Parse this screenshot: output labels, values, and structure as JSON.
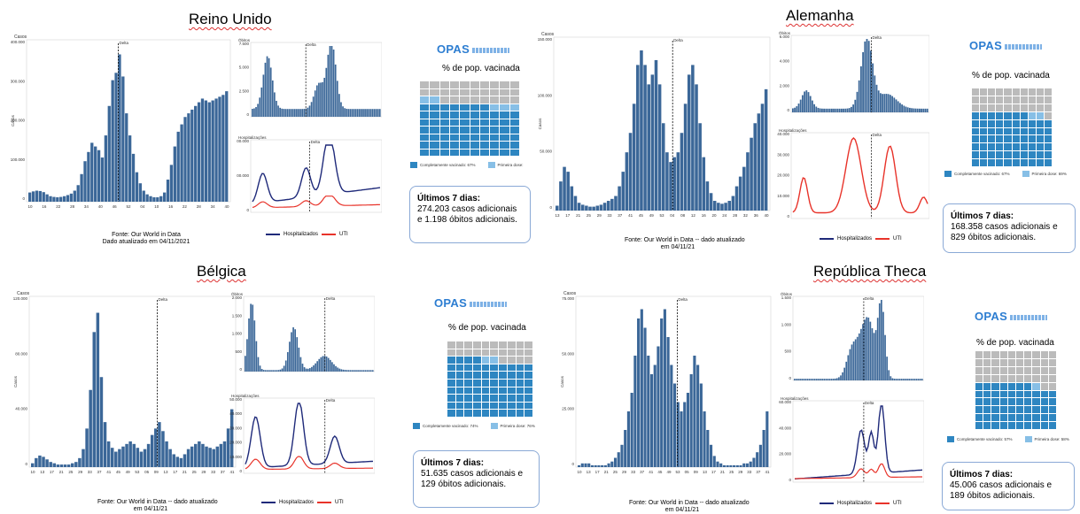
{
  "panels": [
    {
      "title": "Reino Unido",
      "cases_label": "Casos",
      "cases_ylabel": "Casos",
      "cases_yticks": [
        "400.000",
        "300.000",
        "200.000",
        "100.000",
        "0"
      ],
      "cases_xticks": [
        "10",
        "16",
        "22",
        "28",
        "34",
        "40",
        "46",
        "52",
        "04",
        "10",
        "16",
        "22",
        "28",
        "34",
        "40"
      ],
      "delta_label": "Delta",
      "obitos_label": "Óbitos",
      "obitos_ylabel": "Óbitos",
      "obitos_yticks": [
        "7.500",
        "5.000",
        "2.500",
        "0"
      ],
      "hosp_label": "Hospitalizações",
      "hosp_ylabel": "Casos",
      "hosp_yticks": [
        "200.000",
        "100.000",
        "0"
      ],
      "legend_hosp": "Hospitalizados",
      "legend_uti": "UTI",
      "source_line1": "Fonte: Our World in Data",
      "source_line2": "Dado atualizado em 04/11/2021",
      "opas": "OPAS",
      "vac_title": "% de pop. vacinada",
      "vac_full": "Completamente vacinado: 67%",
      "vac_first": "Primeira dose:",
      "vac_full_pct": 67,
      "vac_first_pct": 72,
      "box_title": "Últimos 7 dias:",
      "box_text": "274.203 casos adicionais e 1.198 óbitos adicionais."
    },
    {
      "title": "Alemanha",
      "cases_label": "Casos",
      "cases_ylabel": "Casos",
      "cases_yticks": [
        "150.000",
        "100.000",
        "50.000",
        "0"
      ],
      "cases_xticks": [
        "13",
        "17",
        "21",
        "25",
        "29",
        "33",
        "37",
        "41",
        "45",
        "49",
        "53",
        "04",
        "08",
        "12",
        "16",
        "20",
        "24",
        "28",
        "32",
        "36",
        "40"
      ],
      "delta_label": "Delta",
      "obitos_label": "Óbitos",
      "obitos_ylabel": "Óbitos",
      "obitos_yticks": [
        "6.000",
        "4.000",
        "2.000",
        "0"
      ],
      "hosp_label": "Hospitalizações",
      "hosp_ylabel": "Casos",
      "hosp_yticks": [
        "40.000",
        "30.000",
        "20.000",
        "10.000",
        "0"
      ],
      "legend_hosp": "Hospitalizados",
      "legend_uti": "UTI",
      "source_line1": "Fonte: Our World in Data  -- dado atualizado",
      "source_line2": "em 04/11/21",
      "opas": "OPAS",
      "vac_title": "% de pop. vacinada",
      "vac_full": "Completamente vacinado: 67%",
      "vac_first": "Primeira dose: 69%",
      "vac_full_pct": 67,
      "vac_first_pct": 69,
      "box_title": "Últimos 7 dias:",
      "box_text": "168.358 casos adicionais e 829 óbitos adicionais."
    },
    {
      "title": "Bélgica",
      "cases_label": "Casos",
      "cases_ylabel": "Casos",
      "cases_yticks": [
        "120.000",
        "80.000",
        "40.000",
        "0"
      ],
      "cases_xticks": [
        "10",
        "13",
        "17",
        "21",
        "25",
        "29",
        "33",
        "37",
        "41",
        "45",
        "49",
        "53",
        "05",
        "09",
        "13",
        "17",
        "21",
        "25",
        "29",
        "33",
        "37",
        "41"
      ],
      "delta_label": "Delta",
      "obitos_label": "Óbitos",
      "obitos_ylabel": "Óbitos",
      "obitos_yticks": [
        "2.000",
        "1.500",
        "1.000",
        "500",
        "0"
      ],
      "hosp_label": "Hospitalizações",
      "hosp_ylabel": "Casos",
      "hosp_yticks": [
        "50.000",
        "40.000",
        "30.000",
        "20.000",
        "10.000",
        "0"
      ],
      "legend_hosp": "Hospitalizados",
      "legend_uti": "UTI",
      "source_line1": "Fonte: Our World in Data  -- dado atualizado",
      "source_line2": "em 04/11/21",
      "opas": "OPAS",
      "vac_title": "% de pop. vacinada",
      "vac_full": "Completamente vacinado: 74%",
      "vac_first": "Primeira dose: 76%",
      "vac_full_pct": 74,
      "vac_first_pct": 76,
      "box_title": "Últimos 7 dias:",
      "box_text": "51.635 casos adicionais e 129 óbitos adicionais."
    },
    {
      "title": "República Theca",
      "cases_label": "Casos",
      "cases_ylabel": "Casos",
      "cases_yticks": [
        "75.000",
        "50.000",
        "25.000",
        "0"
      ],
      "cases_xticks": [
        "10",
        "13",
        "17",
        "21",
        "25",
        "29",
        "33",
        "37",
        "41",
        "45",
        "49",
        "53",
        "05",
        "09",
        "13",
        "17",
        "21",
        "25",
        "29",
        "33",
        "37",
        "41"
      ],
      "delta_label": "Delta",
      "obitos_label": "Óbitos",
      "obitos_ylabel": "Óbitos",
      "obitos_yticks": [
        "1.500",
        "1.000",
        "500",
        "0"
      ],
      "hosp_label": "Hospitalizações",
      "hosp_ylabel": "Casos",
      "hosp_yticks": [
        "60.000",
        "40.000",
        "20.000",
        "0"
      ],
      "legend_hosp": "Hospitalizados",
      "legend_uti": "UTI",
      "source_line1": "Fonte: Our World in Data  -- dado atualizado",
      "source_line2": "em 04/11/21",
      "opas": "OPAS",
      "vac_title": "% de pop. vacinada",
      "vac_full": "Completamente vacinado: 57%",
      "vac_first": "Primeira dose: 58%",
      "vac_full_pct": 57,
      "vac_first_pct": 58,
      "box_title": "Últimos 7 dias:",
      "box_text": "45.006 casos adicionais e 189 óbitos adicionais."
    }
  ],
  "colors": {
    "bar": "#3b6798",
    "hosp": "#1f2a7a",
    "uti": "#e8332a",
    "alem_hosp": "#e8332a",
    "vac_full": "#2e86c1",
    "vac_first": "#87bfe6",
    "vac_rest": "#bbbbbb"
  },
  "chart_data": [
    {
      "type": "bar",
      "title": "Reino Unido",
      "series": [
        {
          "name": "Casos",
          "values": [
            25,
            28,
            30,
            29,
            26,
            20,
            15,
            13,
            12,
            13,
            15,
            18,
            22,
            30,
            45,
            75,
            110,
            135,
            160,
            150,
            140,
            120,
            180,
            260,
            330,
            350,
            400,
            340,
            240,
            180,
            130,
            80,
            50,
            30,
            20,
            15,
            12,
            12,
            15,
            25,
            60,
            100,
            150,
            190,
            210,
            230,
            240,
            250,
            260,
            270,
            280,
            275,
            270,
            275,
            280,
            285,
            290,
            300
          ]
        }
      ],
      "ylim": [
        0,
        430000
      ],
      "unit_scale": 1000
    },
    {
      "type": "bar",
      "title": "Alemanha",
      "series": [
        {
          "name": "Casos",
          "values": [
            5,
            30,
            45,
            40,
            25,
            15,
            8,
            6,
            5,
            4,
            4,
            5,
            6,
            8,
            10,
            12,
            15,
            25,
            40,
            60,
            80,
            110,
            150,
            165,
            150,
            130,
            140,
            155,
            130,
            90,
            60,
            50,
            55,
            60,
            80,
            110,
            140,
            150,
            130,
            90,
            55,
            30,
            18,
            10,
            8,
            7,
            8,
            10,
            15,
            25,
            35,
            45,
            60,
            75,
            90,
            100,
            110,
            125
          ]
        }
      ],
      "ylim": [
        0,
        175000
      ],
      "unit_scale": 1000
    },
    {
      "type": "bar",
      "title": "Bélgica",
      "series": [
        {
          "name": "Casos",
          "values": [
            3,
            7,
            9,
            8,
            6,
            4,
            3,
            2,
            2,
            2,
            2,
            3,
            4,
            7,
            14,
            30,
            60,
            105,
            120,
            70,
            35,
            20,
            15,
            12,
            14,
            16,
            18,
            20,
            18,
            15,
            12,
            14,
            18,
            25,
            30,
            35,
            28,
            20,
            14,
            10,
            8,
            7,
            10,
            14,
            16,
            18,
            20,
            18,
            16,
            15,
            14,
            16,
            18,
            20,
            30,
            45
          ]
        }
      ],
      "ylim": [
        0,
        130000
      ],
      "unit_scale": 1000
    },
    {
      "type": "bar",
      "title": "República Theca",
      "series": [
        {
          "name": "Casos",
          "values": [
            1,
            2,
            2,
            2,
            1,
            1,
            1,
            1,
            1,
            2,
            3,
            5,
            8,
            12,
            20,
            30,
            40,
            60,
            80,
            85,
            75,
            60,
            50,
            55,
            65,
            80,
            85,
            70,
            55,
            45,
            35,
            30,
            35,
            40,
            50,
            60,
            55,
            45,
            30,
            20,
            12,
            6,
            3,
            2,
            1,
            1,
            1,
            1,
            1,
            1,
            2,
            2,
            3,
            5,
            8,
            12,
            20,
            30
          ]
        }
      ],
      "ylim": [
        0,
        90000
      ],
      "unit_scale": 1000
    }
  ]
}
